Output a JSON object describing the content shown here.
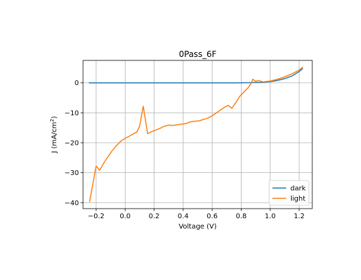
{
  "chart_data": {
    "type": "line",
    "title": "0Pass_6F",
    "xlabel": "Voltage (V)",
    "ylabel_main": "J (mA/cm",
    "ylabel_sup": "2",
    "ylabel_end": ")",
    "xlim": [
      -0.29,
      1.29
    ],
    "ylim": [
      -42,
      7.5
    ],
    "xticks": [
      -0.2,
      0.0,
      0.2,
      0.4,
      0.6,
      0.8,
      1.0,
      1.2
    ],
    "xtick_labels": [
      "−0.2",
      "0.0",
      "0.2",
      "0.4",
      "0.6",
      "0.8",
      "1.0",
      "1.2"
    ],
    "yticks": [
      0,
      -10,
      -20,
      -30,
      -40
    ],
    "ytick_labels": [
      "0",
      "−10",
      "−20",
      "−30",
      "−40"
    ],
    "grid": true,
    "legend_position": "lower-right",
    "series": [
      {
        "name": "dark",
        "color": "#1f77b4",
        "x": [
          -0.25,
          -0.15,
          -0.05,
          0.05,
          0.15,
          0.25,
          0.35,
          0.45,
          0.55,
          0.65,
          0.75,
          0.85,
          0.9,
          0.95,
          1.0,
          1.05,
          1.1,
          1.15,
          1.2,
          1.225
        ],
        "y": [
          0,
          0,
          0,
          0,
          0,
          0,
          0,
          0,
          0,
          0,
          0,
          0.05,
          0.1,
          0.2,
          0.4,
          0.8,
          1.4,
          2.3,
          3.8,
          4.8
        ]
      },
      {
        "name": "light",
        "color": "#ff7f0e",
        "x": [
          -0.245,
          -0.225,
          -0.2,
          -0.175,
          -0.15,
          -0.12,
          -0.09,
          -0.06,
          -0.03,
          0.0,
          0.03,
          0.06,
          0.08,
          0.1,
          0.125,
          0.155,
          0.18,
          0.21,
          0.24,
          0.27,
          0.3,
          0.33,
          0.36,
          0.39,
          0.42,
          0.45,
          0.48,
          0.51,
          0.54,
          0.57,
          0.6,
          0.63,
          0.66,
          0.69,
          0.71,
          0.735,
          0.76,
          0.79,
          0.82,
          0.85,
          0.87,
          0.88,
          0.9,
          0.92,
          0.95,
          1.0,
          1.05,
          1.1,
          1.15,
          1.2,
          1.225
        ],
        "y": [
          -39.8,
          -34.5,
          -27.8,
          -29.2,
          -27.0,
          -24.8,
          -22.7,
          -21.0,
          -19.5,
          -18.5,
          -17.8,
          -16.9,
          -16.5,
          -14.5,
          -7.8,
          -17.0,
          -16.3,
          -15.8,
          -15.2,
          -14.5,
          -14.1,
          -14.2,
          -14.0,
          -13.8,
          -13.6,
          -13.0,
          -12.8,
          -12.7,
          -12.2,
          -11.8,
          -11.0,
          -10.0,
          -9.0,
          -8.0,
          -7.5,
          -8.5,
          -6.8,
          -4.5,
          -3.0,
          -1.5,
          0.0,
          1.2,
          0.5,
          0.8,
          0.3,
          0.6,
          1.2,
          2.0,
          3.0,
          4.3,
          5.3
        ]
      }
    ]
  }
}
